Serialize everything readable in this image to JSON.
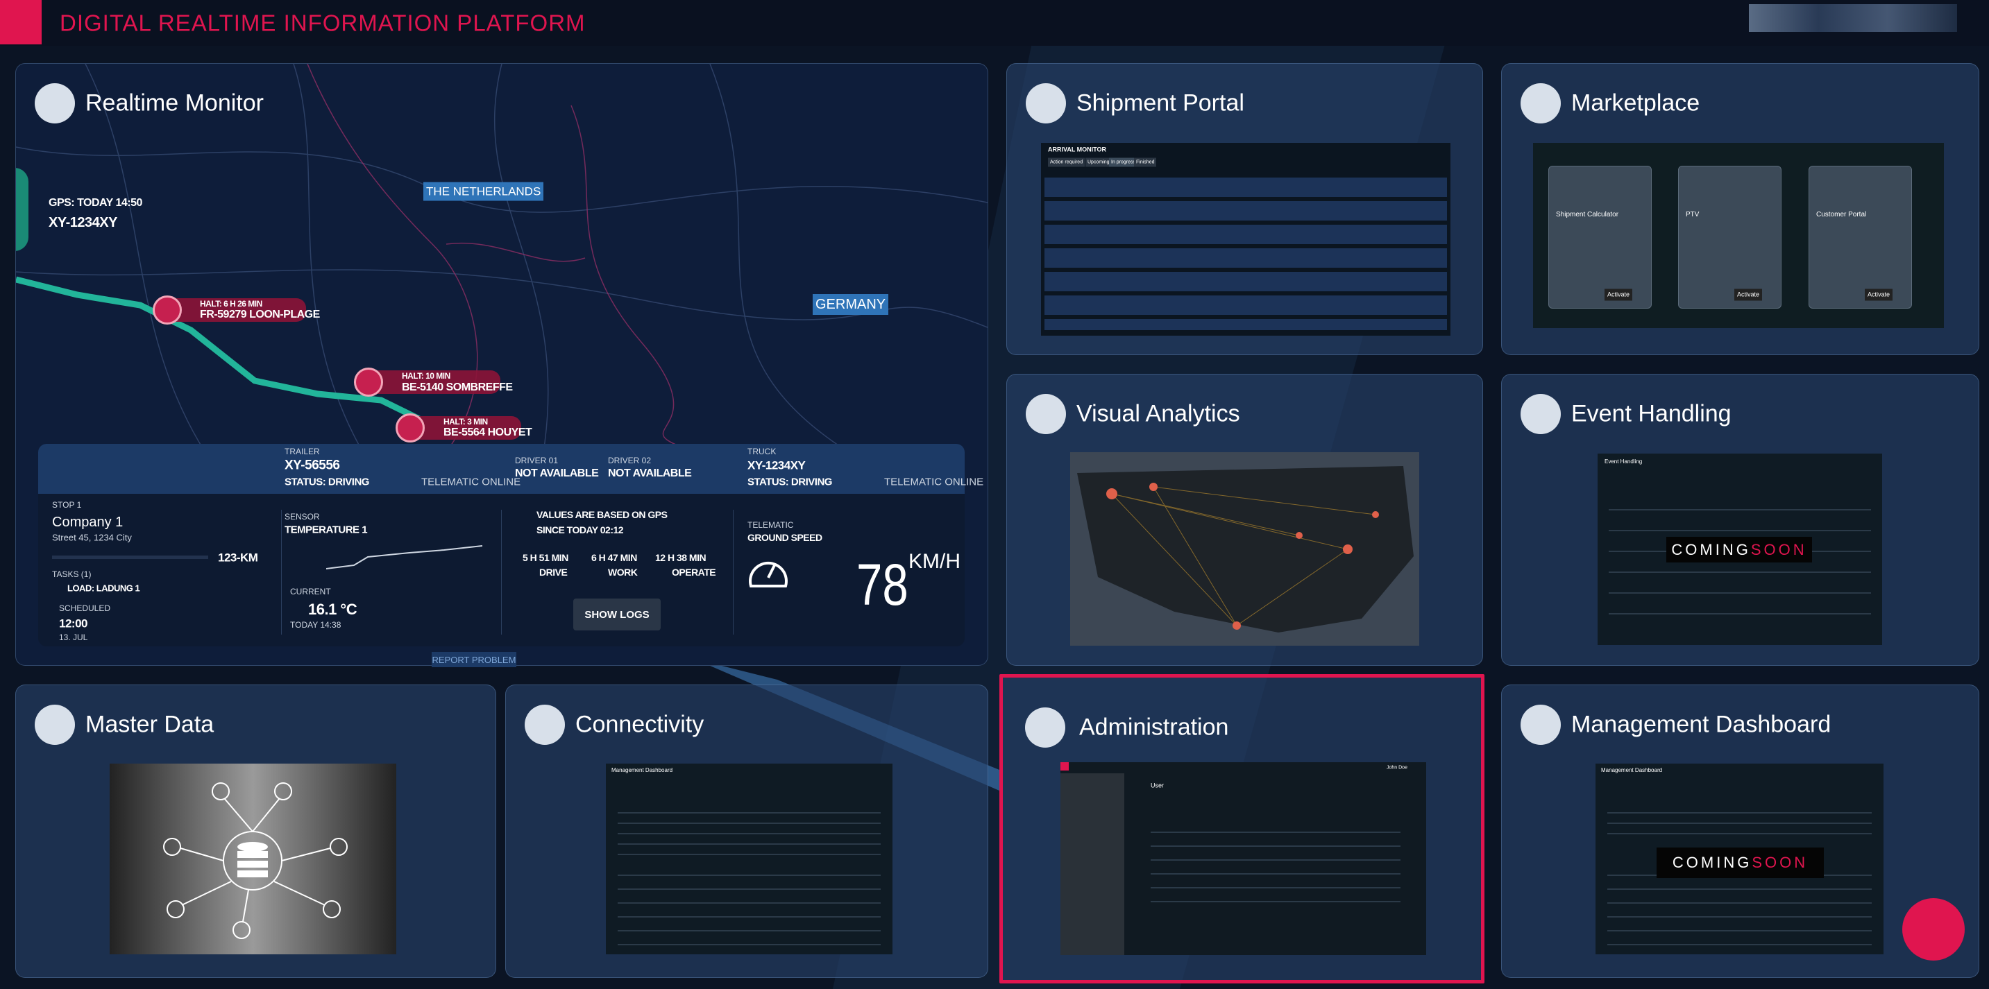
{
  "header": {
    "title": "DIGITAL REALTIME INFORMATION PLATFORM"
  },
  "tiles": [
    {
      "title": "Realtime Monitor"
    },
    {
      "title": "Shipment Portal"
    },
    {
      "title": "Marketplace"
    },
    {
      "title": "Visual Analytics"
    },
    {
      "title": "Event Handling"
    },
    {
      "title": "Master Data"
    },
    {
      "title": "Connectivity"
    },
    {
      "title": "Administration"
    },
    {
      "title": "Management Dashboard"
    }
  ],
  "map": {
    "countries": [
      "THE NETHERLANDS",
      "GERMANY"
    ],
    "vehicle": {
      "gps": "GPS: TODAY 14:50",
      "plate": "XY-1234XY"
    },
    "stops": [
      {
        "halt": "HALT: 6 H 26 MIN",
        "place": "FR-59279 LOON-PLAGE"
      },
      {
        "halt": "HALT: 10 MIN",
        "place": "BE-5140 SOMBREFFE"
      },
      {
        "halt": "HALT: 3 MIN",
        "place": "BE-5564 HOUYET"
      }
    ]
  },
  "trip_panel": {
    "trailer": {
      "label": "TRAILER",
      "id": "XY-56556",
      "status": "STATUS: DRIVING",
      "telematic": "TELEMATIC ONLINE"
    },
    "drivers": [
      {
        "label": "DRIVER 01",
        "value": "NOT AVAILABLE"
      },
      {
        "label": "DRIVER 02",
        "value": "NOT AVAILABLE"
      }
    ],
    "truck": {
      "label": "TRUCK",
      "id": "XY-1234XY",
      "status": "STATUS: DRIVING",
      "telematic": "TELEMATIC ONLINE"
    },
    "stop": {
      "label": "STOP 1",
      "company": "Company 1",
      "address": "Street 45, 1234 City",
      "distance": "123-KM",
      "tasks": "TASKS (1)",
      "load": "LOAD: LADUNG 1",
      "scheduled_label": "SCHEDULED",
      "scheduled_time": "12:00",
      "scheduled_date": "13. JUL"
    },
    "sensor": {
      "label": "SENSOR",
      "name": "TEMPERATURE 1",
      "current_label": "CURRENT",
      "current": "16.1 °C",
      "time": "TODAY 14:38"
    },
    "gps_note": {
      "line1": "VALUES ARE BASED ON GPS",
      "line2": "SINCE TODAY 02:12"
    },
    "durations": [
      {
        "value": "5 H 51 MIN",
        "label": "DRIVE"
      },
      {
        "value": "6 H 47 MIN",
        "label": "WORK"
      },
      {
        "value": "12 H 38 MIN",
        "label": "OPERATE"
      }
    ],
    "show_logs": "SHOW LOGS",
    "telematic": {
      "label": "TELEMATIC",
      "name": "GROUND SPEED",
      "speed": "78",
      "unit": "KM/H"
    }
  },
  "report_problem": "REPORT PROBLEM",
  "shipment_preview": {
    "title": "ARRIVAL MONITOR",
    "tabs": [
      "Action required",
      "Upcoming",
      "In progress",
      "Finished"
    ]
  },
  "marketplace_preview": {
    "apps": [
      {
        "name": "Shipment Calculator",
        "button": "Activate"
      },
      {
        "name": "PTV",
        "button": "Activate"
      },
      {
        "name": "Customer Portal",
        "button": "Activate"
      }
    ]
  },
  "event_preview": {
    "title": "Event Handling",
    "coming": "COMING",
    "soon": "SOON"
  },
  "connectivity_preview": {
    "title": "Management Dashboard"
  },
  "dashboard_preview": {
    "title": "Management Dashboard",
    "coming": "COMING",
    "soon": "SOON"
  },
  "admin_preview": {
    "title": "User",
    "user": "John Doe"
  }
}
